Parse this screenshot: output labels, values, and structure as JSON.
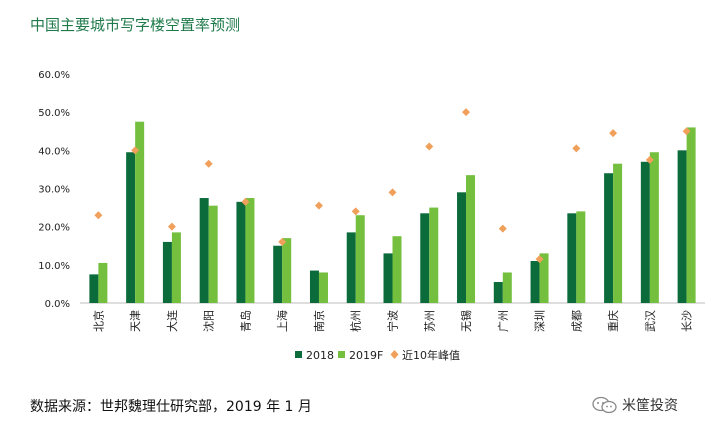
{
  "title": "中国主要城市写字楼空置率预测",
  "source": "数据来源：世邦魏理仕研究部，2019 年 1 月",
  "watermark": {
    "text": "米筐投资",
    "icon": "wechat-icon"
  },
  "colors": {
    "s2018": "#0b6b3a",
    "s2019": "#74bf3e",
    "peak": "#f0a05a"
  },
  "chart_data": {
    "type": "bar",
    "title": "中国主要城市写字楼空置率预测",
    "xlabel": "",
    "ylabel": "",
    "ylim": [
      0,
      60
    ],
    "yticks": [
      "0.0%",
      "10.0%",
      "20.0%",
      "30.0%",
      "40.0%",
      "50.0%",
      "60.0%"
    ],
    "categories": [
      "北京",
      "天津",
      "大连",
      "沈阳",
      "青岛",
      "上海",
      "南京",
      "杭州",
      "宁波",
      "苏州",
      "无锡",
      "广州",
      "深圳",
      "成都",
      "重庆",
      "武汉",
      "长沙"
    ],
    "series": [
      {
        "name": "2018",
        "type": "bar",
        "values": [
          7.5,
          39.5,
          16.0,
          27.5,
          26.5,
          15.0,
          8.5,
          18.5,
          13.0,
          23.5,
          29.0,
          5.5,
          11.0,
          23.5,
          34.0,
          37.0,
          40.0
        ]
      },
      {
        "name": "2019F",
        "type": "bar",
        "values": [
          10.5,
          47.5,
          18.5,
          25.5,
          27.5,
          17.0,
          8.0,
          23.0,
          17.5,
          25.0,
          33.5,
          8.0,
          13.0,
          24.0,
          36.5,
          39.5,
          46.0
        ]
      },
      {
        "name": "近10年峰值",
        "type": "scatter",
        "values": [
          23.0,
          40.0,
          20.0,
          36.5,
          26.5,
          16.0,
          25.5,
          24.0,
          29.0,
          41.0,
          50.0,
          19.5,
          11.5,
          40.5,
          44.5,
          37.5,
          45.0
        ]
      }
    ],
    "legend": "bottom-center"
  }
}
